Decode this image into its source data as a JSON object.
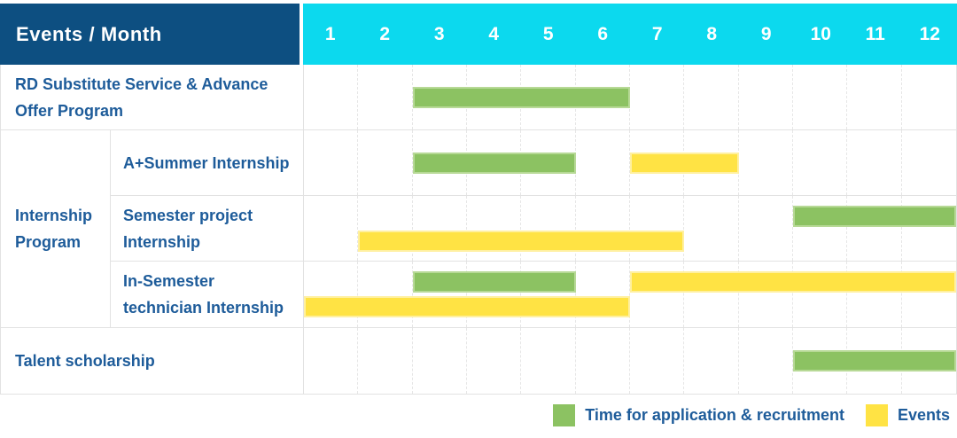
{
  "title": "Events / Month",
  "colors": {
    "header_bg": "#0d4f81",
    "months_bg": "#0cd9ee",
    "label_text": "#1e5c9a",
    "green": "#8cc262",
    "green_border": "#b7d996",
    "yellow": "#ffe344",
    "yellow_border": "#fff0a0"
  },
  "chart_data": {
    "type": "table",
    "subtype": "gantt-schedule",
    "title": "Events / Month",
    "x_axis_label": "Month",
    "months": [
      "1",
      "2",
      "3",
      "4",
      "5",
      "6",
      "7",
      "8",
      "9",
      "10",
      "11",
      "12"
    ],
    "x_range": [
      1,
      12
    ],
    "grid": true,
    "legend_position": "bottom-right",
    "legend": [
      {
        "key": "green",
        "label": "Time for application & recruitment"
      },
      {
        "key": "yellow",
        "label": "Events"
      }
    ],
    "rows": [
      {
        "type": "simple",
        "label": "RD Substitute Service & Advance Offer Program",
        "bars": [
          {
            "color": "green",
            "start_month": 3,
            "end_month": 6,
            "lane": "center"
          }
        ]
      },
      {
        "type": "group",
        "label": "Internship Program",
        "children": [
          {
            "label": "A+Summer Internship",
            "bars": [
              {
                "color": "green",
                "start_month": 3,
                "end_month": 5,
                "lane": "center"
              },
              {
                "color": "yellow",
                "start_month": 7,
                "end_month": 8,
                "lane": "center"
              }
            ]
          },
          {
            "label": "Semester project Internship",
            "bars": [
              {
                "color": "green",
                "start_month": 10,
                "end_month": 12,
                "lane": "top"
              },
              {
                "color": "yellow",
                "start_month": 2,
                "end_month": 7,
                "lane": "bottom"
              }
            ]
          },
          {
            "label": "In-Semester technician Internship",
            "bars": [
              {
                "color": "green",
                "start_month": 3,
                "end_month": 5,
                "lane": "top"
              },
              {
                "color": "yellow",
                "start_month": 7,
                "end_month": 12,
                "lane": "top"
              },
              {
                "color": "yellow",
                "start_month": 1,
                "end_month": 6,
                "lane": "bottom"
              }
            ]
          }
        ]
      },
      {
        "type": "simple",
        "label": "Talent scholarship",
        "bars": [
          {
            "color": "green",
            "start_month": 10,
            "end_month": 12,
            "lane": "center"
          }
        ]
      }
    ]
  }
}
